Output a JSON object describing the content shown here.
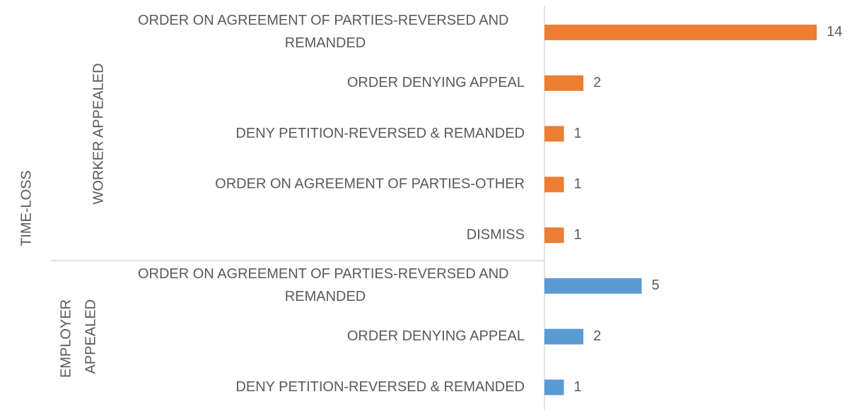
{
  "chart_data": {
    "type": "bar",
    "group_label": "TIME-LOSS",
    "groups": [
      {
        "name": "WORKER APPEALED",
        "color": "#ED7D31",
        "categories": [
          "ORDER ON AGREEMENT OF PARTIES-REVERSED AND REMANDED",
          "ORDER DENYING APPEAL",
          "DENY PETITION-REVERSED & REMANDED",
          "ORDER ON AGREEMENT OF PARTIES-OTHER",
          "DISMISS"
        ],
        "values": [
          14,
          2,
          1,
          1,
          1
        ]
      },
      {
        "name": "EMPLOYER APPEALED",
        "color": "#5B9BD5",
        "categories": [
          "ORDER ON AGREEMENT OF PARTIES-REVERSED AND REMANDED",
          "ORDER DENYING APPEAL",
          "DENY PETITION-REVERSED & REMANDED"
        ],
        "values": [
          5,
          2,
          1
        ]
      }
    ]
  }
}
